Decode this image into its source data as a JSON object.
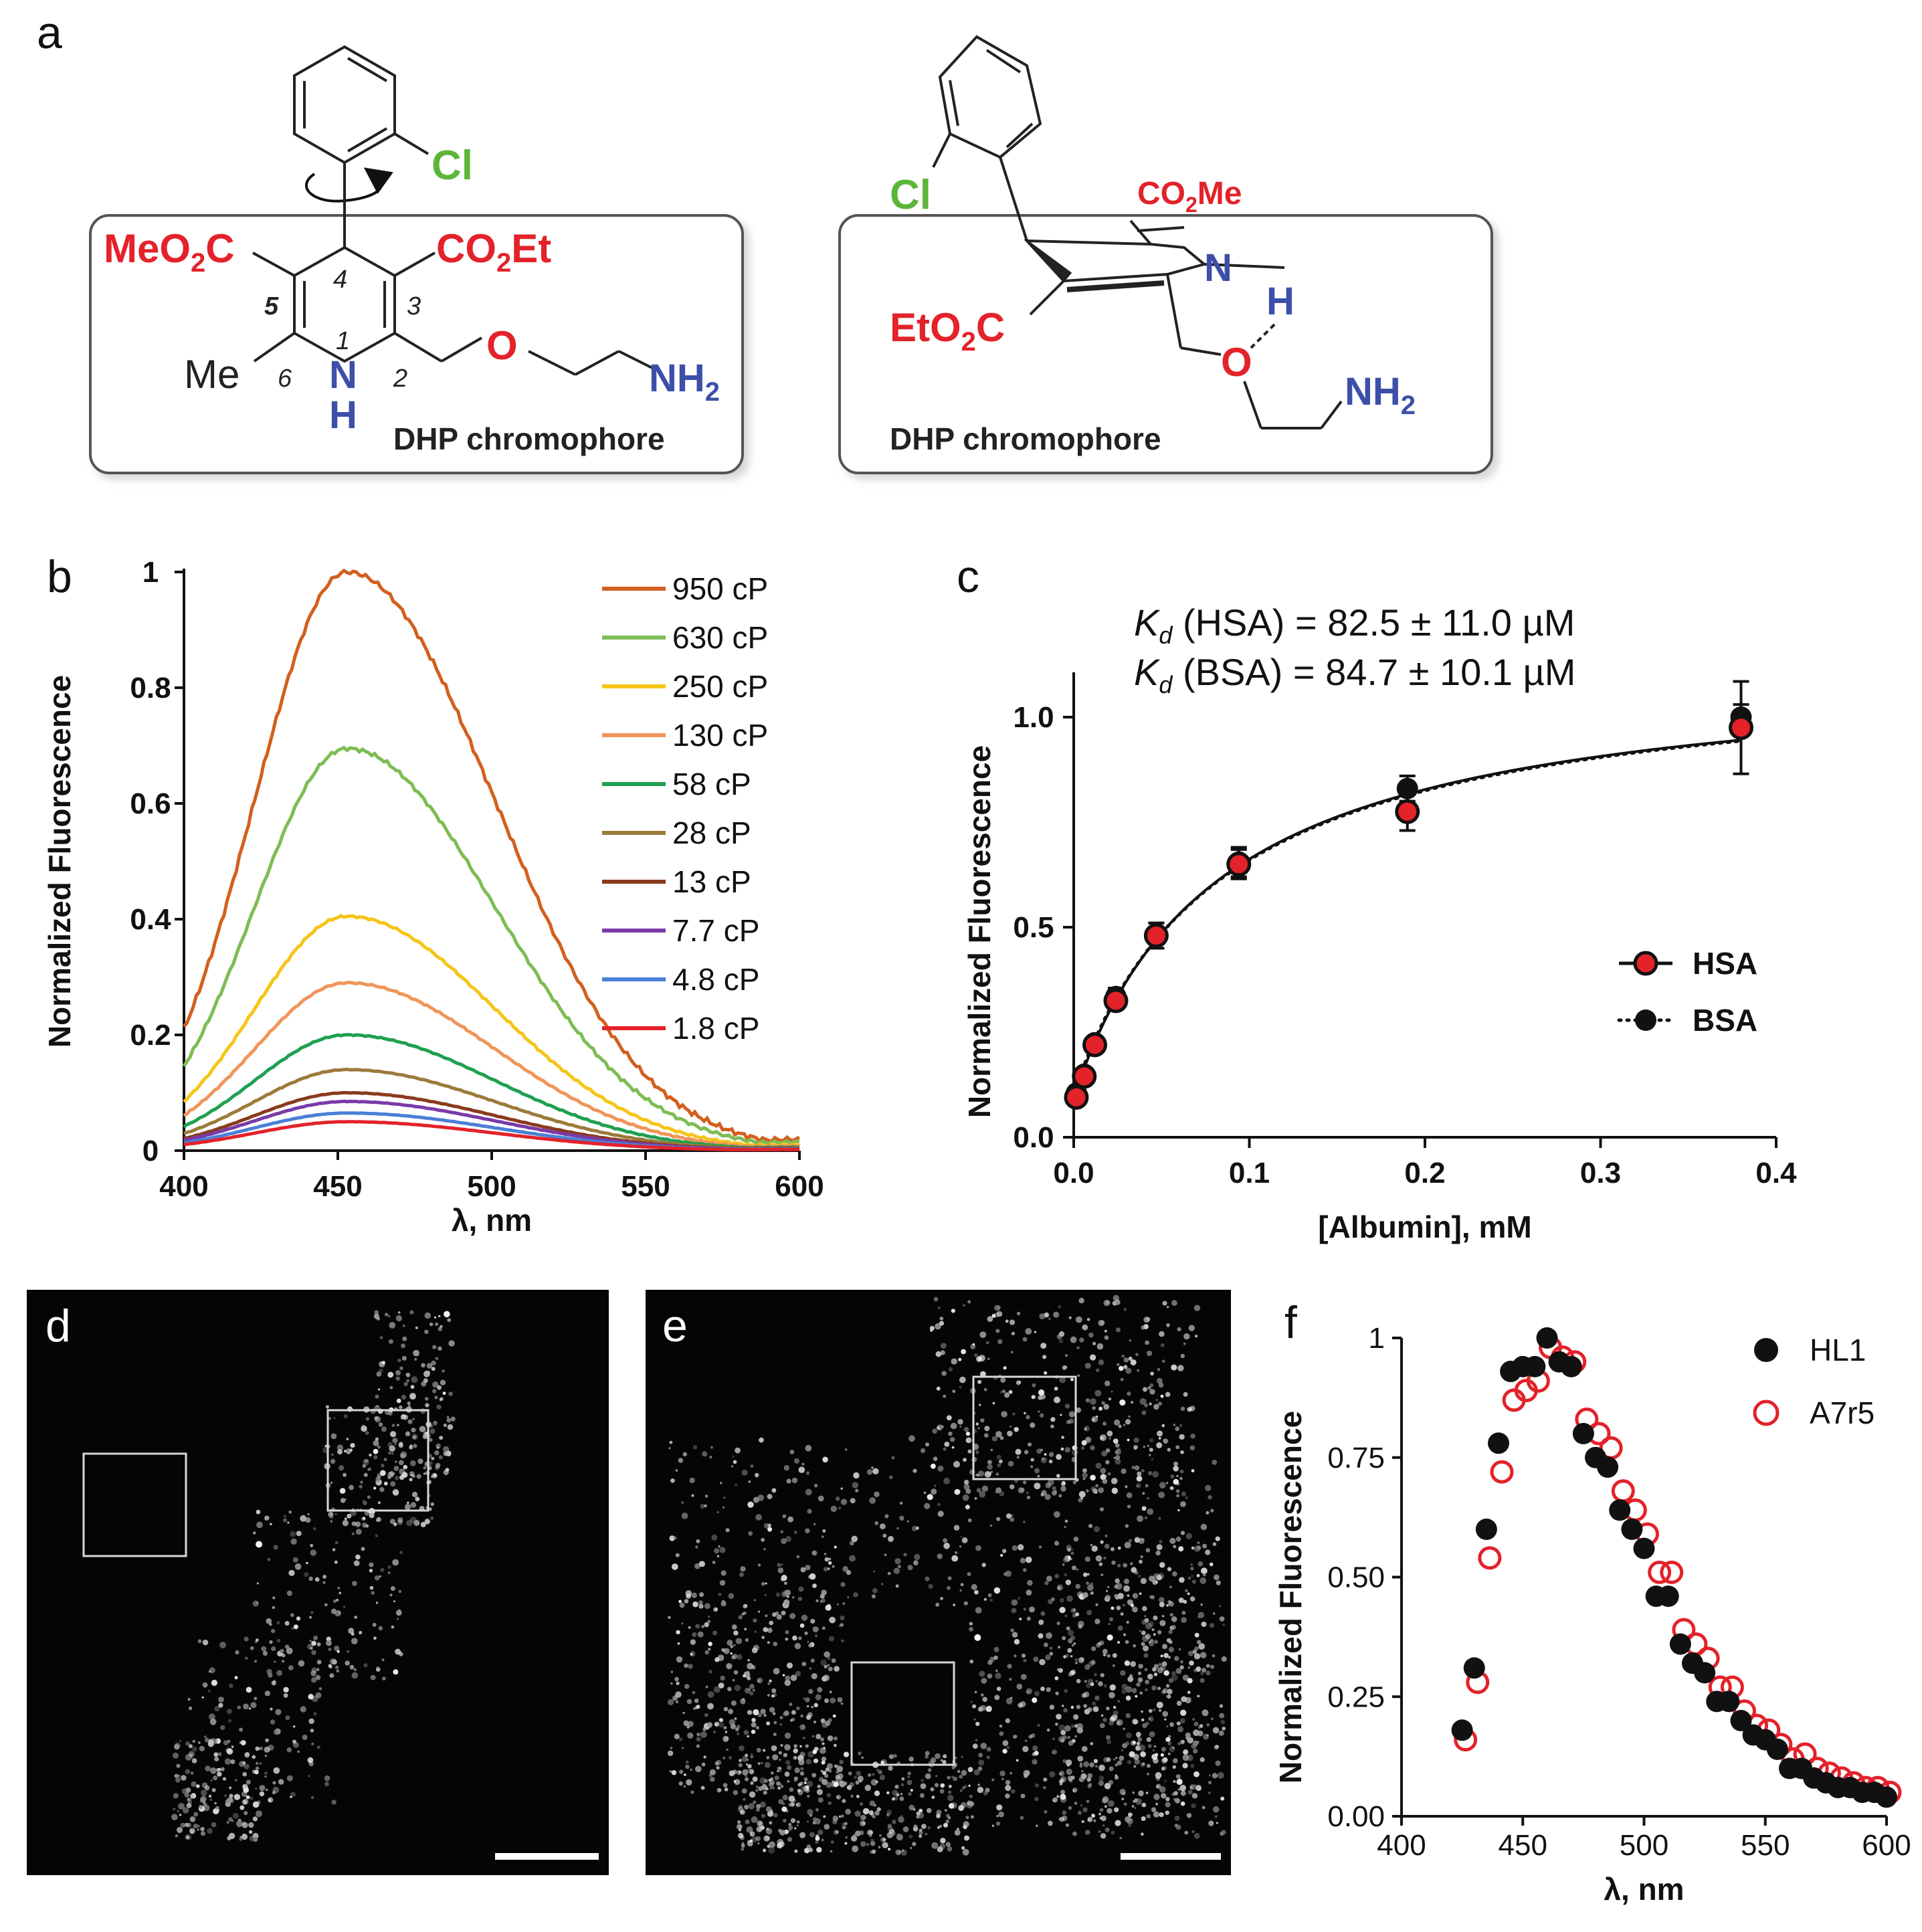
{
  "panel_labels": {
    "a": "a",
    "b": "b",
    "c": "c",
    "d": "d",
    "e": "e",
    "f": "f"
  },
  "structure_left": {
    "cl": "Cl",
    "meo2c": [
      "MeO",
      "2",
      "C"
    ],
    "co2et": [
      "CO",
      "2",
      "Et"
    ],
    "me": "Me",
    "nh_n": "N",
    "nh_h": "H",
    "o": "O",
    "nh2": [
      "NH",
      "2"
    ],
    "positions": {
      "p1": "1",
      "p2": "2",
      "p3": "3",
      "p4": "4",
      "p5": "5",
      "p6": "6"
    },
    "label": "DHP chromophore"
  },
  "structure_right": {
    "cl": "Cl",
    "co2me": [
      "CO",
      "2",
      "Me"
    ],
    "eto2c": [
      "EtO",
      "2",
      "C"
    ],
    "n": "N",
    "h": "H",
    "o": "O",
    "nh2": [
      "NH",
      "2"
    ],
    "label": "DHP chromophore"
  },
  "chart_data": [
    {
      "id": "b",
      "type": "line",
      "xlabel": "λ, nm",
      "ylabel": "Normalized Fluorescence",
      "xlim": [
        400,
        600
      ],
      "ylim": [
        0,
        1
      ],
      "xticks": [
        "400",
        "450",
        "500",
        "550",
        "600"
      ],
      "yticks": [
        "0",
        "0.2",
        "0.4",
        "0.6",
        "0.8",
        "1"
      ],
      "legend_position": "top-right",
      "series": [
        {
          "name": "950 cP",
          "color": "#d2601f",
          "peak": 1.0,
          "start": 0.15,
          "end": 0.02
        },
        {
          "name": "630 cP",
          "color": "#7dbd55",
          "peak": 0.695,
          "start": 0.1,
          "end": 0.015
        },
        {
          "name": "250 cP",
          "color": "#f5c518",
          "peak": 0.405,
          "start": 0.06,
          "end": 0.01
        },
        {
          "name": "130 cP",
          "color": "#f0955a",
          "peak": 0.29,
          "start": 0.045,
          "end": 0.008
        },
        {
          "name": "58 cP",
          "color": "#1fa050",
          "peak": 0.2,
          "start": 0.03,
          "end": 0.006
        },
        {
          "name": "28 cP",
          "color": "#9c7a3a",
          "peak": 0.14,
          "start": 0.022,
          "end": 0.005
        },
        {
          "name": "13 cP",
          "color": "#8a3a1e",
          "peak": 0.1,
          "start": 0.016,
          "end": 0.004
        },
        {
          "name": "7.7 cP",
          "color": "#7a3aa8",
          "peak": 0.085,
          "start": 0.013,
          "end": 0.003
        },
        {
          "name": "4.8 cP",
          "color": "#4a7fd6",
          "peak": 0.065,
          "start": 0.01,
          "end": 0.003
        },
        {
          "name": "1.8 cP",
          "color": "#e3222a",
          "peak": 0.05,
          "start": 0.008,
          "end": 0.002
        }
      ]
    },
    {
      "id": "c",
      "type": "scatter",
      "xlabel": "[Albumin], mM",
      "ylabel": "Normalized Fluorescence",
      "xlim": [
        0,
        0.4
      ],
      "ylim": [
        0,
        1.0
      ],
      "xticks": [
        "0.0",
        "0.1",
        "0.2",
        "0.3",
        "0.4"
      ],
      "yticks": [
        "0.0",
        "0.5",
        "1.0"
      ],
      "annotations": [
        {
          "k": "K",
          "sub": "d",
          "text": " (HSA) = 82.5 ± 11.0 µM"
        },
        {
          "k": "K",
          "sub": "d",
          "text": "  (BSA) = 84.7 ± 10.1 µM"
        }
      ],
      "legend_position": "bottom-right",
      "series": [
        {
          "name": "HSA",
          "marker": "red-filled-black-edge",
          "line": "solid",
          "kd": 0.0825,
          "x": [
            0.0015,
            0.006,
            0.012,
            0.024,
            0.047,
            0.094,
            0.19,
            0.38
          ],
          "y": [
            0.095,
            0.145,
            0.22,
            0.325,
            0.48,
            0.65,
            0.775,
            0.975
          ],
          "err": [
            0.01,
            0.01,
            0.015,
            0.02,
            0.03,
            0.035,
            0.045,
            0.11
          ]
        },
        {
          "name": "BSA",
          "marker": "black-filled",
          "line": "dotted",
          "kd": 0.0847,
          "x": [
            0.0015,
            0.006,
            0.012,
            0.024,
            0.047,
            0.094,
            0.19,
            0.38
          ],
          "y": [
            0.105,
            0.15,
            0.225,
            0.335,
            0.48,
            0.655,
            0.83,
            1.0
          ],
          "err": [
            0.01,
            0.01,
            0.015,
            0.02,
            0.03,
            0.035,
            0.03,
            0.03
          ]
        }
      ]
    },
    {
      "id": "f",
      "type": "scatter",
      "xlabel": "λ, nm",
      "ylabel": "Normalized Fluorescence",
      "xlim": [
        400,
        600
      ],
      "ylim": [
        0,
        1
      ],
      "xticks": [
        "400",
        "450",
        "500",
        "550",
        "600"
      ],
      "yticks": [
        "0.00",
        "0.25",
        "0.50",
        "0.75",
        "1"
      ],
      "legend_position": "top-right",
      "series": [
        {
          "name": "HL1",
          "marker": "black-filled",
          "x": [
            425,
            430,
            435,
            440,
            445,
            450,
            455,
            460,
            465,
            470,
            475,
            480,
            485,
            490,
            495,
            500,
            505,
            510,
            515,
            520,
            525,
            530,
            535,
            540,
            545,
            550,
            555,
            560,
            565,
            570,
            575,
            580,
            585,
            590,
            595,
            600
          ],
          "y": [
            0.18,
            0.31,
            0.6,
            0.78,
            0.93,
            0.94,
            0.94,
            1.0,
            0.95,
            0.94,
            0.8,
            0.75,
            0.73,
            0.64,
            0.6,
            0.56,
            0.46,
            0.46,
            0.36,
            0.32,
            0.3,
            0.24,
            0.24,
            0.2,
            0.17,
            0.16,
            0.14,
            0.1,
            0.1,
            0.08,
            0.07,
            0.06,
            0.06,
            0.05,
            0.05,
            0.04
          ]
        },
        {
          "name": "A7r5",
          "marker": "red-open",
          "x": [
            425,
            430,
            435,
            440,
            445,
            450,
            455,
            460,
            465,
            470,
            475,
            480,
            485,
            490,
            495,
            500,
            505,
            510,
            515,
            520,
            525,
            530,
            535,
            540,
            545,
            550,
            555,
            560,
            565,
            570,
            575,
            580,
            585,
            590,
            595,
            600
          ],
          "y": [
            0.16,
            0.28,
            0.54,
            0.72,
            0.87,
            0.89,
            0.91,
            0.98,
            0.96,
            0.95,
            0.83,
            0.8,
            0.77,
            0.68,
            0.64,
            0.59,
            0.51,
            0.51,
            0.39,
            0.36,
            0.33,
            0.27,
            0.27,
            0.22,
            0.19,
            0.18,
            0.15,
            0.12,
            0.13,
            0.1,
            0.09,
            0.08,
            0.07,
            0.06,
            0.06,
            0.05
          ]
        }
      ]
    }
  ]
}
